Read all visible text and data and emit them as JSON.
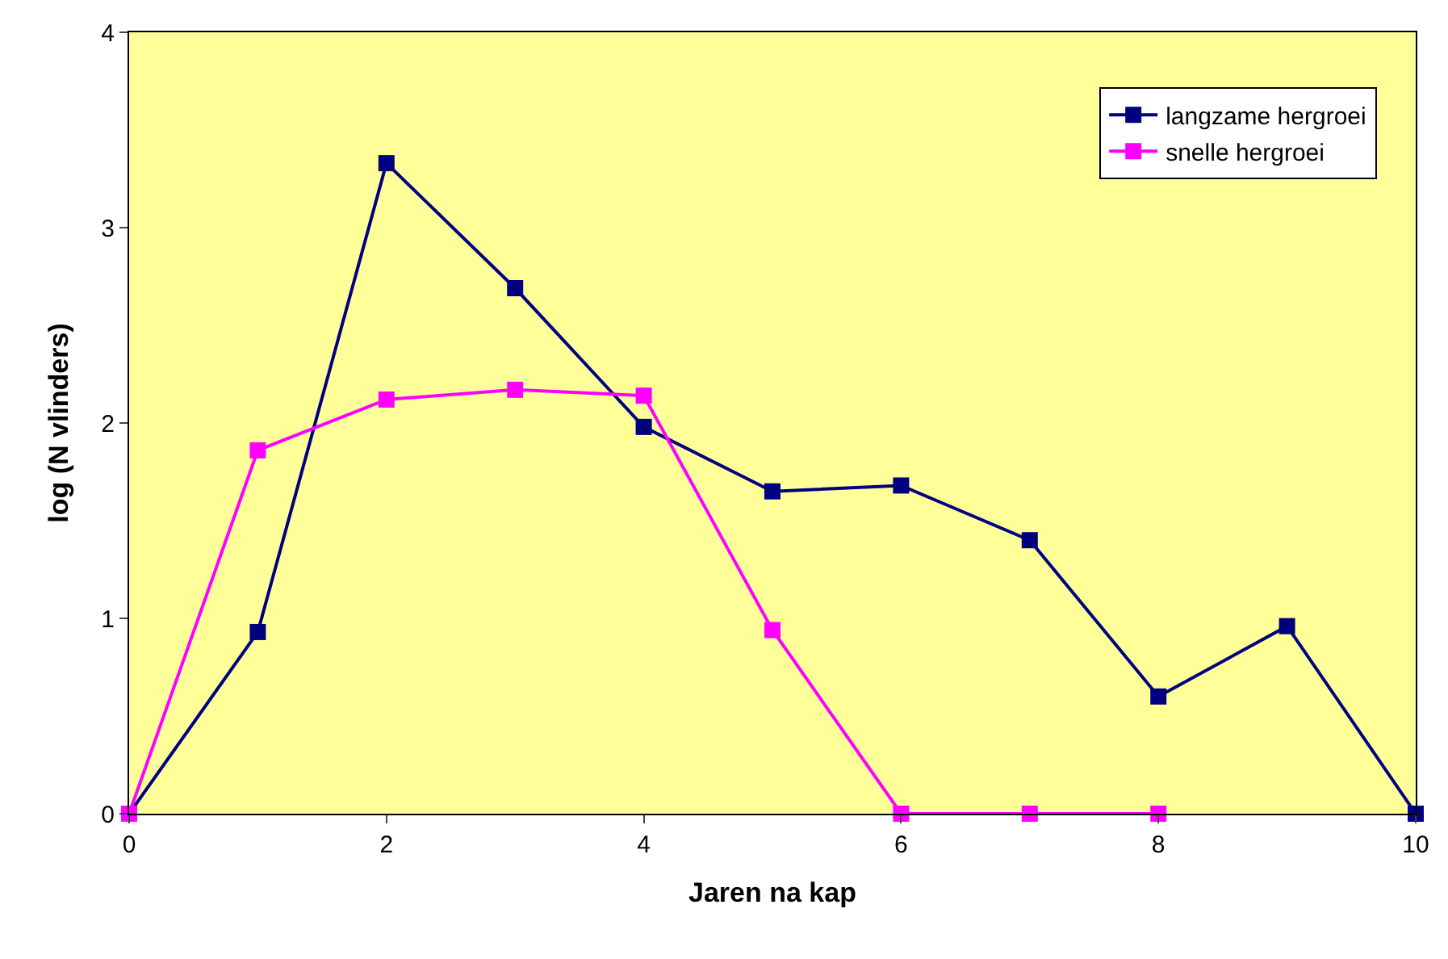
{
  "chart_data": {
    "type": "line",
    "xlabel": "Jaren na kap",
    "ylabel": "log (N vlinders)",
    "xlim": [
      0,
      10
    ],
    "xticks": [
      0,
      2,
      4,
      6,
      8,
      10
    ],
    "ylim": [
      0,
      4
    ],
    "yticks": [
      0,
      1,
      2,
      3,
      4
    ],
    "grid": false,
    "legend": "top right",
    "marker": "square",
    "line_style": "solid",
    "series": [
      {
        "name": "langzame hergroei",
        "color": "#000080",
        "x": [
          0,
          1,
          2,
          3,
          4,
          5,
          6,
          7,
          8,
          9,
          10
        ],
        "values": [
          0,
          0.93,
          3.33,
          2.69,
          1.98,
          1.65,
          1.68,
          1.4,
          0.6,
          0.96,
          0
        ]
      },
      {
        "name": "snelle hergroei",
        "color": "#ff00ff",
        "x": [
          0,
          1,
          2,
          3,
          4,
          5,
          6,
          7,
          8
        ],
        "values": [
          0,
          1.86,
          2.12,
          2.17,
          2.14,
          0.94,
          0,
          0,
          0
        ]
      }
    ]
  }
}
